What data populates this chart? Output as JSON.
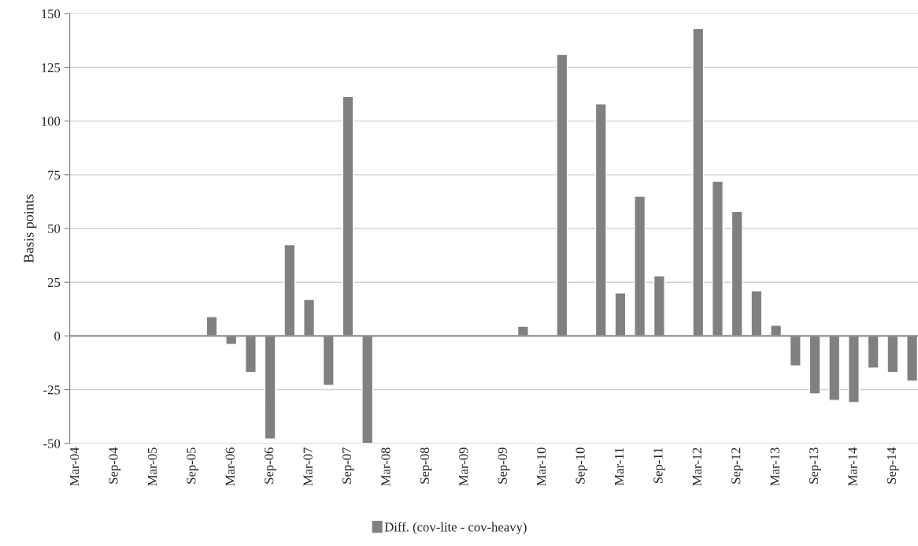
{
  "chart_data": {
    "type": "bar",
    "ylabel": "Basis points",
    "categories": [
      "Mar-04",
      null,
      "Sep-04",
      null,
      "Mar-05",
      null,
      "Sep-05",
      null,
      "Mar-06",
      null,
      "Sep-06",
      null,
      "Mar-07",
      null,
      "Sep-07",
      null,
      "Mar-08",
      null,
      "Sep-08",
      null,
      "Mar-09",
      null,
      "Sep-09",
      null,
      "Mar-10",
      null,
      "Sep-10",
      null,
      "Mar-11",
      null,
      "Sep-11",
      null,
      "Mar-12",
      null,
      "Sep-12",
      null,
      "Mar-13",
      null,
      "Sep-13",
      null,
      "Mar-14",
      null,
      "Sep-14",
      null
    ],
    "series": [
      {
        "name": "Diff. (cov-lite - cov-heavy)",
        "color": "#808080",
        "values": [
          null,
          null,
          null,
          null,
          null,
          null,
          null,
          9,
          -4,
          -17,
          -48,
          42.5,
          17,
          -23,
          111.5,
          -50,
          null,
          null,
          null,
          null,
          null,
          null,
          null,
          4.5,
          null,
          131,
          null,
          108,
          20,
          65,
          28,
          null,
          143,
          72,
          58,
          21,
          5,
          -14,
          -27,
          -30,
          -31,
          -15,
          -17,
          -21
        ]
      }
    ],
    "ylim": [
      -50,
      150
    ],
    "yticks": [
      -50,
      -25,
      0,
      25,
      50,
      75,
      100,
      125,
      150
    ],
    "grid": "y",
    "legend": "bottom"
  }
}
